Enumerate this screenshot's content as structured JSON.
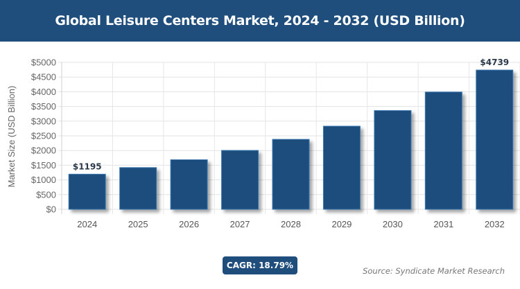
{
  "header": {
    "title": "Global Leisure Centers Market, 2024 - 2032 (USD Billion)"
  },
  "chart_data": {
    "type": "bar",
    "title": "Global Leisure Centers Market, 2024 - 2032 (USD Billion)",
    "categories": [
      "2024",
      "2025",
      "2026",
      "2027",
      "2028",
      "2029",
      "2030",
      "2031",
      "2032"
    ],
    "values": [
      1195,
      1420,
      1687,
      2004,
      2381,
      2829,
      3360,
      3991,
      4739
    ],
    "data_labels": {
      "0": "$1195",
      "8": "$4739"
    },
    "xlabel": "",
    "ylabel": "Market Size (USD Billion)",
    "ylim": [
      0,
      5000
    ],
    "yticks": [
      "$0",
      "$500",
      "$1000",
      "$1500",
      "$2000",
      "$2500",
      "$3000",
      "$3500",
      "$4000",
      "$4500",
      "$5000"
    ],
    "grid": true,
    "bar_color": "#1f4e7d"
  },
  "footer": {
    "cagr": "CAGR: 18.79%",
    "source": "Source: Syndicate Market Research"
  }
}
